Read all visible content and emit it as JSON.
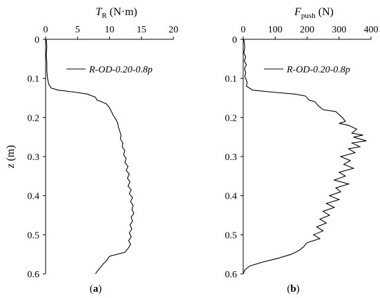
{
  "chart_data": [
    {
      "type": "line",
      "panel_label": {
        "open": "(",
        "letter": "a",
        "close": ")"
      },
      "xlabel": {
        "main": "T",
        "sub": "R",
        "unit": " (N·m)"
      },
      "ylabel": {
        "main": "z",
        "unit": " (m)"
      },
      "x_axis_position": "top",
      "y_axis_inverted": true,
      "xlim": [
        0,
        20
      ],
      "ylim": [
        0,
        0.6
      ],
      "xticks": [
        0,
        5,
        10,
        15,
        20
      ],
      "xtick_labels": [
        "0",
        "5",
        "10",
        "15",
        "20"
      ],
      "yticks": [
        0,
        0.1,
        0.2,
        0.3,
        0.4,
        0.5,
        0.6
      ],
      "ytick_labels": [
        "0",
        "0.1",
        "0.2",
        "0.3",
        "0.4",
        "0.5",
        "0.6"
      ],
      "grid": false,
      "legend_position": "upper-middle",
      "series": [
        {
          "name": "R-OD-0.20-0.8p",
          "color": "#000000",
          "points": [
            [
              0.1,
              0.0
            ],
            [
              0.2,
              0.02
            ],
            [
              0.1,
              0.04
            ],
            [
              0.2,
              0.06
            ],
            [
              0.2,
              0.08
            ],
            [
              0.3,
              0.1
            ],
            [
              0.5,
              0.115
            ],
            [
              0.9,
              0.125
            ],
            [
              2.0,
              0.13
            ],
            [
              4.5,
              0.135
            ],
            [
              6.5,
              0.14
            ],
            [
              7.8,
              0.148
            ],
            [
              8.0,
              0.155
            ],
            [
              8.8,
              0.16
            ],
            [
              9.5,
              0.165
            ],
            [
              10.0,
              0.175
            ],
            [
              10.3,
              0.185
            ],
            [
              10.6,
              0.195
            ],
            [
              11.0,
              0.205
            ],
            [
              11.3,
              0.215
            ],
            [
              11.4,
              0.225
            ],
            [
              11.6,
              0.235
            ],
            [
              11.8,
              0.245
            ],
            [
              11.7,
              0.255
            ],
            [
              12.1,
              0.265
            ],
            [
              12.0,
              0.275
            ],
            [
              12.4,
              0.285
            ],
            [
              12.2,
              0.295
            ],
            [
              12.6,
              0.305
            ],
            [
              12.4,
              0.315
            ],
            [
              12.9,
              0.325
            ],
            [
              12.6,
              0.335
            ],
            [
              13.1,
              0.345
            ],
            [
              12.8,
              0.355
            ],
            [
              13.2,
              0.365
            ],
            [
              12.9,
              0.375
            ],
            [
              13.4,
              0.385
            ],
            [
              13.1,
              0.395
            ],
            [
              13.6,
              0.405
            ],
            [
              13.3,
              0.415
            ],
            [
              13.7,
              0.425
            ],
            [
              13.5,
              0.435
            ],
            [
              13.8,
              0.445
            ],
            [
              13.4,
              0.455
            ],
            [
              13.6,
              0.465
            ],
            [
              13.2,
              0.475
            ],
            [
              13.5,
              0.485
            ],
            [
              13.1,
              0.495
            ],
            [
              13.4,
              0.505
            ],
            [
              13.0,
              0.515
            ],
            [
              13.3,
              0.525
            ],
            [
              12.9,
              0.535
            ],
            [
              12.4,
              0.545
            ],
            [
              10.0,
              0.555
            ],
            [
              9.6,
              0.565
            ],
            [
              9.0,
              0.575
            ],
            [
              8.5,
              0.585
            ],
            [
              8.0,
              0.595
            ],
            [
              7.8,
              0.6
            ]
          ]
        }
      ]
    },
    {
      "type": "line",
      "panel_label": {
        "open": "(",
        "letter": "b",
        "close": ")"
      },
      "xlabel": {
        "main": "F",
        "sub": "push",
        "unit": " (N)"
      },
      "ylabel": {
        "main": "",
        "unit": ""
      },
      "x_axis_position": "top",
      "y_axis_inverted": true,
      "xlim": [
        0,
        400
      ],
      "ylim": [
        0,
        0.6
      ],
      "xticks": [
        0,
        100,
        200,
        300,
        400
      ],
      "xtick_labels": [
        "0",
        "100",
        "200",
        "300",
        "400"
      ],
      "yticks": [
        0,
        0.1,
        0.2,
        0.3,
        0.4,
        0.5,
        0.6
      ],
      "ytick_labels": [
        "0",
        "0.1",
        "0.2",
        "0.3",
        "0.4",
        "0.5",
        "0.6"
      ],
      "grid": false,
      "legend_position": "upper-middle",
      "series": [
        {
          "name": "R-OD-0.20-0.8p",
          "color": "#000000",
          "points": [
            [
              2,
              0.0
            ],
            [
              5,
              0.02
            ],
            [
              2,
              0.035
            ],
            [
              8,
              0.045
            ],
            [
              3,
              0.055
            ],
            [
              10,
              0.065
            ],
            [
              4,
              0.075
            ],
            [
              8,
              0.085
            ],
            [
              5,
              0.095
            ],
            [
              12,
              0.11
            ],
            [
              10,
              0.12
            ],
            [
              30,
              0.13
            ],
            [
              90,
              0.135
            ],
            [
              160,
              0.14
            ],
            [
              195,
              0.145
            ],
            [
              205,
              0.155
            ],
            [
              225,
              0.16
            ],
            [
              235,
              0.17
            ],
            [
              250,
              0.18
            ],
            [
              290,
              0.185
            ],
            [
              310,
              0.2
            ],
            [
              320,
              0.21
            ],
            [
              300,
              0.215
            ],
            [
              330,
              0.22
            ],
            [
              355,
              0.23
            ],
            [
              340,
              0.24
            ],
            [
              375,
              0.245
            ],
            [
              345,
              0.25
            ],
            [
              385,
              0.26
            ],
            [
              340,
              0.265
            ],
            [
              365,
              0.275
            ],
            [
              330,
              0.28
            ],
            [
              350,
              0.29
            ],
            [
              305,
              0.3
            ],
            [
              335,
              0.31
            ],
            [
              315,
              0.32
            ],
            [
              345,
              0.33
            ],
            [
              300,
              0.34
            ],
            [
              320,
              0.35
            ],
            [
              285,
              0.36
            ],
            [
              330,
              0.37
            ],
            [
              290,
              0.38
            ],
            [
              305,
              0.39
            ],
            [
              270,
              0.4
            ],
            [
              300,
              0.41
            ],
            [
              260,
              0.42
            ],
            [
              285,
              0.43
            ],
            [
              250,
              0.44
            ],
            [
              270,
              0.45
            ],
            [
              240,
              0.46
            ],
            [
              260,
              0.47
            ],
            [
              230,
              0.48
            ],
            [
              250,
              0.49
            ],
            [
              220,
              0.5
            ],
            [
              240,
              0.51
            ],
            [
              200,
              0.52
            ],
            [
              190,
              0.53
            ],
            [
              175,
              0.54
            ],
            [
              150,
              0.55
            ],
            [
              110,
              0.56
            ],
            [
              60,
              0.57
            ],
            [
              20,
              0.58
            ],
            [
              5,
              0.59
            ],
            [
              0,
              0.6
            ]
          ]
        }
      ]
    }
  ]
}
